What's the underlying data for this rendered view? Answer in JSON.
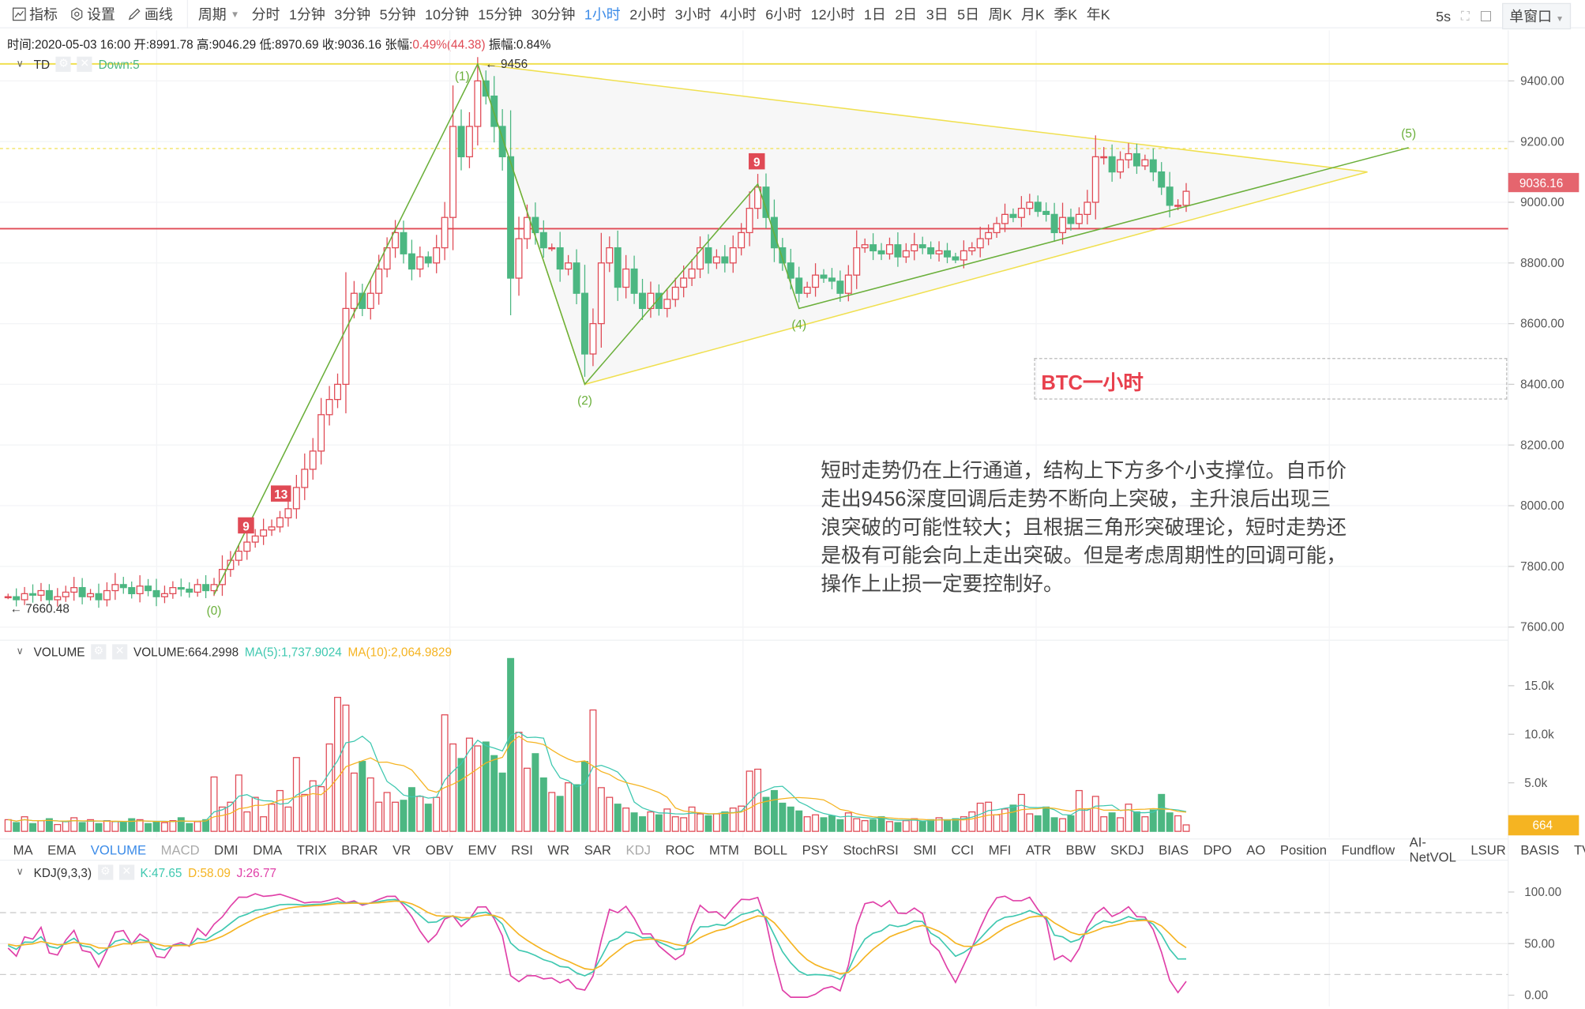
{
  "toolbar": {
    "indicators": "指标",
    "settings": "设置",
    "draw": "画线",
    "period": "周期",
    "periods": [
      "分时",
      "1分钟",
      "3分钟",
      "5分钟",
      "10分钟",
      "15分钟",
      "30分钟",
      "1小时",
      "2小时",
      "3小时",
      "4小时",
      "6小时",
      "12小时",
      "1日",
      "2日",
      "3日",
      "5日",
      "周K",
      "月K",
      "季K",
      "年K"
    ],
    "active_period": "1小时",
    "refresh": "5s",
    "window_mode": "单窗口"
  },
  "info": {
    "time_label": "时间:",
    "time": "2020-05-03 16:00",
    "open_label": "开:",
    "open": "8991.78",
    "high_label": "高:",
    "high": "9046.29",
    "low_label": "低:",
    "low": "8970.69",
    "close_label": "收:",
    "close": "9036.16",
    "change_label": "张幅:",
    "change": "0.49%(44.38)",
    "amp_label": "振幅:",
    "amp": "0.84%"
  },
  "td": {
    "name": "TD",
    "status": "Down:5"
  },
  "volume_head": {
    "name": "VOLUME",
    "value": "VOLUME:664.2998",
    "ma5": "MA(5):1,737.9024",
    "ma10": "MA(10):2,064.9829"
  },
  "kdj_head": {
    "name": "KDJ(9,3,3)",
    "k": "K:47.65",
    "d": "D:58.09",
    "j": "J:26.77"
  },
  "indicator_tabs": [
    "MA",
    "EMA",
    "VOLUME",
    "MACD",
    "DMI",
    "DMA",
    "TRIX",
    "BRAR",
    "VR",
    "OBV",
    "EMV",
    "RSI",
    "WR",
    "SAR",
    "KDJ",
    "ROC",
    "MTM",
    "BOLL",
    "PSY",
    "StochRSI",
    "SMI",
    "CCI",
    "MFI",
    "ATR",
    "BBW",
    "SKDJ",
    "BIAS",
    "DPO",
    "AO",
    "Position",
    "Fundflow",
    "AI-NetVOL",
    "LSUR",
    "BASIS",
    "TVolume"
  ],
  "active_tab": "VOLUME",
  "dim_tabs": [
    "MACD",
    "KDJ"
  ],
  "annotation_title": "BTC一小时",
  "annotation_text": "短时走势仍在上行通道，结构上下方多个小支撑位。自币价走出9456深度回调后走势不断向上突破，主升浪后出现三浪突破的可能性较大；且根据三角形突破理论，短时走势还是极有可能会向上走出突破。但是考虑周期性的回调可能，操作上止损一定要控制好。",
  "colors": {
    "up": "#e04a55",
    "down": "#4cb782",
    "ma5": "#3fc8b0",
    "ma10": "#f5b422",
    "k": "#3fc8b0",
    "d": "#f5b422",
    "j": "#e040a8",
    "wave": "#6aaf3a",
    "triangle": "#f0e050",
    "active": "#3b8be8"
  },
  "chart_data": [
    {
      "type": "candlestick",
      "price_axis": [
        "9400.00",
        "9200.00",
        "9000.00",
        "8800.00",
        "8600.00",
        "8400.00",
        "8200.00",
        "8000.00",
        "7800.00",
        "7600.00"
      ],
      "ylim": [
        7600,
        9400
      ],
      "last_price": "9036.16",
      "low_marker": "7660.48",
      "high_marker": "9456",
      "open_first": 7700,
      "closes": [
        7700,
        7690,
        7710,
        7705,
        7720,
        7690,
        7700,
        7715,
        7730,
        7700,
        7710,
        7690,
        7720,
        7740,
        7730,
        7710,
        7735,
        7720,
        7700,
        7710,
        7730,
        7725,
        7715,
        7740,
        7720,
        7740,
        7790,
        7820,
        7850,
        7880,
        7900,
        7920,
        7930,
        7960,
        7990,
        8060,
        8120,
        8180,
        8300,
        8350,
        8400,
        8650,
        8700,
        8650,
        8700,
        8780,
        8850,
        8900,
        8830,
        8780,
        8820,
        8800,
        8850,
        8950,
        9250,
        9150,
        9250,
        9400,
        9350,
        9250,
        9150,
        8750,
        8880,
        8950,
        8900,
        8850,
        8850,
        8780,
        8800,
        8700,
        8500,
        8600,
        8800,
        8850,
        8720,
        8780,
        8700,
        8650,
        8700,
        8650,
        8680,
        8720,
        8750,
        8780,
        8850,
        8800,
        8820,
        8800,
        8850,
        8900,
        8980,
        9050,
        8950,
        8850,
        8800,
        8750,
        8700,
        8720,
        8760,
        8750,
        8740,
        8700,
        8760,
        8850,
        8860,
        8840,
        8830,
        8860,
        8820,
        8840,
        8860,
        8850,
        8830,
        8840,
        8820,
        8810,
        8840,
        8850,
        8880,
        8900,
        8930,
        8960,
        8950,
        8980,
        9000,
        8970,
        8960,
        8900,
        8950,
        8930,
        8960,
        9000,
        9150,
        9150,
        9100,
        9140,
        9160,
        9120,
        9140,
        9100,
        9050,
        8990,
        8990,
        9036.16
      ],
      "horizontal_lines": [
        {
          "price": 9456,
          "style": "solid",
          "color": "#f0e050"
        },
        {
          "price": 9177,
          "style": "dotted",
          "color": "#f0e050"
        },
        {
          "price": 8913,
          "style": "solid",
          "color": "#e04a55"
        }
      ],
      "waves": [
        {
          "label": "(0)",
          "i": 25,
          "price": 7707
        },
        {
          "label": "(1)",
          "i": 57,
          "price": 9456
        },
        {
          "label": "(2)",
          "i": 70,
          "price": 8400
        },
        {
          "label": "",
          "i": 91,
          "price": 9060
        },
        {
          "label": "(4)",
          "i": 96,
          "price": 8650
        },
        {
          "label": "(5)",
          "i": 170,
          "price": 9180
        }
      ],
      "triangle": [
        {
          "i": 57,
          "price": 9456
        },
        {
          "i": 165,
          "price": 9100
        },
        {
          "i": 70,
          "price": 8400
        }
      ],
      "td_marks": [
        {
          "label": "9",
          "i": 29,
          "price": 7935
        },
        {
          "label": "13",
          "i": 33,
          "price": 8040
        },
        {
          "label": "9",
          "i": 91,
          "price": 9135
        }
      ]
    },
    {
      "type": "bar",
      "name": "VOLUME",
      "axis": [
        "15.0k",
        "10.0k",
        "5.0k"
      ],
      "last_value": "664",
      "values": [
        1200,
        900,
        1500,
        800,
        1100,
        1300,
        700,
        1000,
        1400,
        900,
        1200,
        800,
        1100,
        1000,
        900,
        1300,
        1200,
        800,
        1000,
        900,
        1100,
        1400,
        800,
        1000,
        1200,
        5600,
        2500,
        3000,
        5800,
        2000,
        3500,
        1500,
        2800,
        4200,
        2500,
        7600,
        3800,
        5200,
        4600,
        9000,
        13800,
        13000,
        6000,
        7200,
        5500,
        3000,
        4000,
        3000,
        3200,
        4500,
        3600,
        2800,
        3500,
        12000,
        9000,
        7500,
        9600,
        8800,
        9200,
        7800,
        6000,
        17800,
        10200,
        6500,
        8000,
        5500,
        4000,
        3600,
        5000,
        4800,
        7200,
        12500,
        4500,
        3500,
        2800,
        2400,
        1900,
        1500,
        2000,
        1700,
        2300,
        1500,
        1400,
        2500,
        1800,
        1600,
        1800,
        2000,
        2400,
        2600,
        6200,
        6400,
        3500,
        4200,
        2900,
        2500,
        2100,
        1500,
        1700,
        1400,
        1600,
        1200,
        1900,
        1300,
        1100,
        1200,
        1500,
        1000,
        900,
        1100,
        1300,
        1000,
        1200,
        1400,
        1100,
        1300,
        1500,
        2000,
        2900,
        3000,
        1700,
        2300,
        2700,
        3800,
        1800,
        1600,
        2500,
        1400,
        1300,
        1600,
        4200,
        2300,
        3600,
        1500,
        1900,
        1400,
        2800,
        2000,
        1500,
        2200,
        3800,
        1900,
        1600,
        664
      ]
    },
    {
      "type": "line",
      "name": "KDJ(9,3,3)",
      "axis": [
        "100.00",
        "50.00",
        "0.00"
      ],
      "ylim": [
        0,
        100
      ]
    }
  ]
}
